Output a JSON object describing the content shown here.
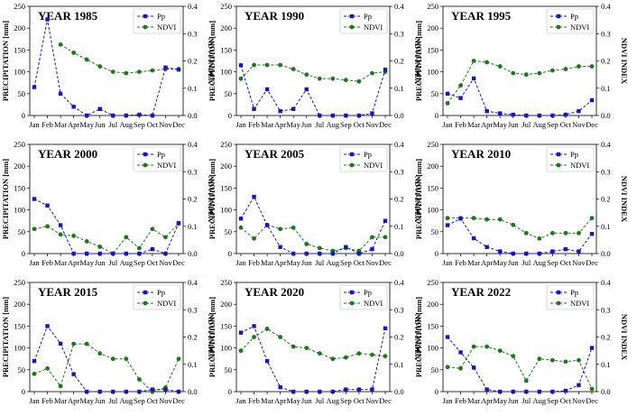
{
  "chart_data": {
    "type": "line",
    "months": [
      "Jan",
      "Feb",
      "Mar",
      "Apr",
      "May",
      "Jun",
      "Jul",
      "Aug",
      "Sep",
      "Oct",
      "Nov",
      "Dec"
    ],
    "ylabel_left": "PRECIPITATION [mm]",
    "ylabel_right": "NDVI INDEX",
    "ylim_left": [
      0,
      250
    ],
    "ylim_right": [
      0,
      0.4
    ],
    "yticks_left": [
      "0",
      "50",
      "100",
      "150",
      "200",
      "250"
    ],
    "yticks_right": [
      "0.0",
      "0.1",
      "0.2",
      "0.3",
      "0.4"
    ],
    "legend": {
      "pp": "Pp",
      "ndvi": "NDVI",
      "placement": "top-right"
    },
    "colors": {
      "pp": "#1515c8",
      "ndvi": "#1a7a1a"
    },
    "panels": [
      {
        "title": "YEAR 1985",
        "pp": [
          65,
          220,
          50,
          20,
          0,
          15,
          0,
          0,
          2,
          0,
          110,
          105
        ],
        "ndvi": [
          null,
          null,
          0.26,
          0.23,
          0.205,
          0.18,
          0.16,
          0.155,
          0.16,
          0.165,
          0.17,
          0.17
        ]
      },
      {
        "title": "YEAR 1990",
        "pp": [
          115,
          15,
          60,
          10,
          15,
          60,
          0,
          0,
          0,
          0,
          5,
          105
        ],
        "ndvi": [
          0.135,
          0.185,
          0.185,
          0.185,
          0.17,
          0.15,
          0.135,
          0.135,
          0.13,
          0.125,
          0.155,
          0.16
        ]
      },
      {
        "title": "YEAR 1995",
        "pp": [
          50,
          40,
          85,
          10,
          5,
          2,
          0,
          0,
          0,
          2,
          10,
          35
        ],
        "ndvi": [
          0.045,
          0.11,
          0.2,
          0.195,
          0.18,
          0.155,
          0.15,
          0.155,
          0.165,
          0.17,
          0.18,
          0.18
        ]
      },
      {
        "title": "YEAR 2000",
        "pp": [
          125,
          110,
          65,
          0,
          0,
          0,
          0,
          0,
          0,
          10,
          0,
          70
        ],
        "ndvi": [
          0.09,
          0.1,
          0.07,
          0.065,
          0.045,
          0.025,
          0.0,
          0.06,
          0.02,
          0.09,
          0.06,
          0.11
        ]
      },
      {
        "title": "YEAR 2005",
        "pp": [
          80,
          130,
          65,
          15,
          0,
          0,
          0,
          0,
          15,
          0,
          10,
          75
        ],
        "ndvi": [
          0.095,
          0.055,
          0.105,
          0.09,
          0.095,
          0.035,
          0.02,
          0.01,
          0.02,
          0.01,
          0.06,
          0.06
        ]
      },
      {
        "title": "YEAR 2010",
        "pp": [
          65,
          80,
          35,
          15,
          5,
          0,
          0,
          0,
          5,
          10,
          5,
          45
        ],
        "ndvi": [
          0.13,
          0.13,
          0.13,
          0.125,
          0.125,
          0.105,
          0.075,
          0.055,
          0.075,
          0.075,
          0.075,
          0.13
        ]
      },
      {
        "title": "YEAR 2015",
        "pp": [
          70,
          150,
          110,
          40,
          0,
          0,
          0,
          0,
          0,
          5,
          5,
          0
        ],
        "ndvi": [
          0.065,
          0.085,
          0.02,
          0.175,
          0.175,
          0.14,
          0.12,
          0.12,
          0.045,
          0.0,
          0.015,
          0.12
        ]
      },
      {
        "title": "YEAR 2020",
        "pp": [
          135,
          150,
          70,
          10,
          0,
          0,
          0,
          0,
          5,
          5,
          5,
          145
        ],
        "ndvi": [
          0.15,
          0.2,
          0.23,
          0.2,
          0.165,
          0.16,
          0.14,
          0.12,
          0.125,
          0.14,
          0.135,
          0.13
        ]
      },
      {
        "title": "YEAR 2022",
        "pp": [
          125,
          90,
          55,
          5,
          0,
          0,
          0,
          0,
          0,
          2,
          15,
          100
        ],
        "ndvi": [
          0.09,
          0.085,
          0.165,
          0.165,
          0.15,
          0.13,
          0.04,
          0.12,
          0.115,
          0.11,
          0.115,
          0.01
        ]
      }
    ]
  }
}
